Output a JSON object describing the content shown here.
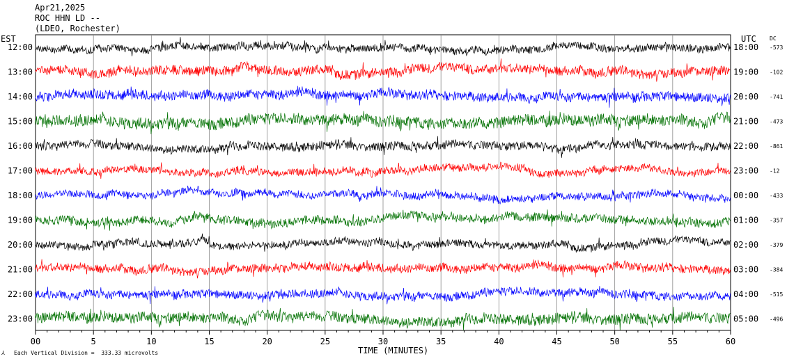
{
  "header": {
    "date": "Apr21,2025",
    "station": "ROC HHN LD --",
    "network": "(LDEO, Rochester)",
    "left_tz": "EST",
    "right_tz": "UTC",
    "dc_label": "DC"
  },
  "footer": {
    "division_note": "Each Vertical Division =  333.33 microvolts",
    "x_title": "TIME (MINUTES)"
  },
  "chart_data": {
    "type": "line",
    "title": "",
    "xlabel": "TIME (MINUTES)",
    "x_ticks": [
      "00",
      "5",
      "10",
      "15",
      "20",
      "25",
      "30",
      "35",
      "40",
      "45",
      "50",
      "55",
      "60"
    ],
    "xlim": [
      0,
      60
    ],
    "grid": true,
    "trace_colors": [
      "#000000",
      "#ff0000",
      "#0000ff",
      "#007000"
    ],
    "rows": [
      {
        "est": "12:00",
        "utc": "18:00",
        "dc": "-573",
        "color": "#000000",
        "amplitude": 0.35
      },
      {
        "est": "13:00",
        "utc": "19:00",
        "dc": "-102",
        "color": "#ff0000",
        "amplitude": 0.45
      },
      {
        "est": "14:00",
        "utc": "20:00",
        "dc": "-741",
        "color": "#0000ff",
        "amplitude": 0.45
      },
      {
        "est": "15:00",
        "utc": "21:00",
        "dc": "-473",
        "color": "#007000",
        "amplitude": 0.55
      },
      {
        "est": "16:00",
        "utc": "22:00",
        "dc": "-861",
        "color": "#000000",
        "amplitude": 0.4
      },
      {
        "est": "17:00",
        "utc": "23:00",
        "dc": "-12",
        "color": "#ff0000",
        "amplitude": 0.35
      },
      {
        "est": "18:00",
        "utc": "00:00",
        "dc": "-433",
        "color": "#0000ff",
        "amplitude": 0.35
      },
      {
        "est": "19:00",
        "utc": "01:00",
        "dc": "-357",
        "color": "#007000",
        "amplitude": 0.4
      },
      {
        "est": "20:00",
        "utc": "02:00",
        "dc": "-379",
        "color": "#000000",
        "amplitude": 0.35
      },
      {
        "est": "21:00",
        "utc": "03:00",
        "dc": "-384",
        "color": "#ff0000",
        "amplitude": 0.4
      },
      {
        "est": "22:00",
        "utc": "04:00",
        "dc": "-515",
        "color": "#0000ff",
        "amplitude": 0.4
      },
      {
        "est": "23:00",
        "utc": "05:00",
        "dc": "-496",
        "color": "#007000",
        "amplitude": 0.5
      }
    ]
  }
}
